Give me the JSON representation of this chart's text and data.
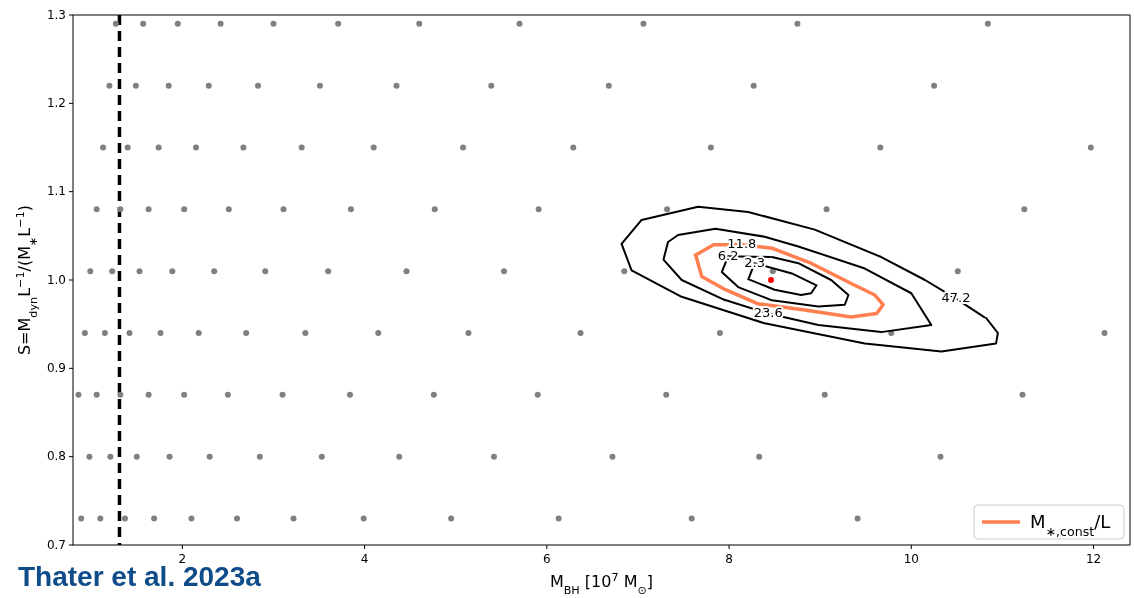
{
  "chart_data": {
    "type": "scatter",
    "xlabel": "M$_{BH}$ [10$^{7}$ M$_{⊙}$]",
    "ylabel": "S=M$_{dyn}$L$^{−1}$/(M$_{∗}$L$^{−1}$)",
    "xlim": [
      0.8,
      12.4
    ],
    "ylim": [
      0.7,
      1.3
    ],
    "xticks": [
      2,
      4,
      6,
      8,
      10,
      12
    ],
    "yticks": [
      {
        "value": 0.7,
        "label": "0.7"
      },
      {
        "value": 0.8,
        "label": "0.8"
      },
      {
        "value": 0.9,
        "label": "0.9"
      },
      {
        "value": 1.0,
        "label": "1.0"
      },
      {
        "value": 1.1,
        "label": "1.1"
      },
      {
        "value": 1.2,
        "label": "1.2"
      },
      {
        "value": 1.3,
        "label": "1.3"
      }
    ],
    "legend": "bottom right",
    "ref_lines": [
      {
        "axis": "x",
        "value": 1.31,
        "color": "#000000",
        "line_style": "dashed"
      }
    ],
    "series": [
      {
        "marker": "circle",
        "color": "#808080",
        "x": [
          1.27,
          1.57,
          1.95,
          2.42,
          3.0,
          3.71,
          4.6,
          5.7,
          7.06,
          8.75,
          10.84,
          1.2,
          1.49,
          1.85,
          2.29,
          2.83,
          3.51,
          4.35,
          5.39,
          6.68,
          8.27,
          10.25,
          1.13,
          1.4,
          1.74,
          2.15,
          2.67,
          3.31,
          4.1,
          5.08,
          6.29,
          7.8,
          9.66,
          11.97,
          1.06,
          1.32,
          1.63,
          2.02,
          2.51,
          3.11,
          3.85,
          4.77,
          5.91,
          7.32,
          9.07,
          11.24,
          0.99,
          1.23,
          1.53,
          1.89,
          2.35,
          2.91,
          3.6,
          4.46,
          5.53,
          6.85,
          8.48,
          10.51,
          0.93,
          1.15,
          1.42,
          1.76,
          2.18,
          2.7,
          3.35,
          4.15,
          5.14,
          6.37,
          7.9,
          9.78,
          12.12,
          0.86,
          1.06,
          1.32,
          1.63,
          2.02,
          2.5,
          3.1,
          3.84,
          4.76,
          5.9,
          7.31,
          9.05,
          11.22,
          0.98,
          1.21,
          1.5,
          1.86,
          2.3,
          2.85,
          3.53,
          4.38,
          5.42,
          6.72,
          8.33,
          10.32,
          0.89,
          1.1,
          1.37,
          1.69,
          2.1,
          2.6,
          3.22,
          3.99,
          4.95,
          6.13,
          7.59,
          9.41,
          null
        ],
        "values": [
          1.29,
          1.29,
          1.29,
          1.29,
          1.29,
          1.29,
          1.29,
          1.29,
          1.29,
          1.29,
          1.29,
          1.22,
          1.22,
          1.22,
          1.22,
          1.22,
          1.22,
          1.22,
          1.22,
          1.22,
          1.22,
          1.22,
          1.15,
          1.15,
          1.15,
          1.15,
          1.15,
          1.15,
          1.15,
          1.15,
          1.15,
          1.15,
          1.15,
          1.15,
          1.08,
          1.08,
          1.08,
          1.08,
          1.08,
          1.08,
          1.08,
          1.08,
          1.08,
          1.08,
          1.08,
          1.08,
          1.01,
          1.01,
          1.01,
          1.01,
          1.01,
          1.01,
          1.01,
          1.01,
          1.01,
          1.01,
          1.01,
          1.01,
          0.94,
          0.94,
          0.94,
          0.94,
          0.94,
          0.94,
          0.94,
          0.94,
          0.94,
          0.94,
          0.94,
          0.94,
          0.94,
          0.87,
          0.87,
          0.87,
          0.87,
          0.87,
          0.87,
          0.87,
          0.87,
          0.87,
          0.87,
          0.87,
          0.87,
          0.87,
          0.8,
          0.8,
          0.8,
          0.8,
          0.8,
          0.8,
          0.8,
          0.8,
          0.8,
          0.8,
          0.8,
          0.8,
          0.73,
          0.73,
          0.73,
          0.73,
          0.73,
          0.73,
          0.73,
          0.73,
          0.73,
          0.73,
          0.73,
          0.73,
          null
        ]
      },
      {
        "type": "line",
        "color": "#000000",
        "x": [
          8.21,
          8.5,
          8.79,
          8.9,
          8.96,
          8.7,
          8.28,
          8.22
        ],
        "values": [
          1.001,
          0.989,
          0.983,
          0.985,
          0.994,
          1.007,
          1.019,
          1.003
        ]
      },
      {
        "type": "line",
        "color": "#000000",
        "x": [
          8.47,
          8.76,
          9.12,
          9.31,
          9.27,
          8.98,
          8.47,
          8.1,
          7.92,
          7.99,
          8.45
        ],
        "values": [
          1.026,
          1.019,
          1.0,
          0.983,
          0.972,
          0.97,
          0.977,
          0.992,
          1.009,
          1.027,
          1.026
        ]
      },
      {
        "type": "line",
        "color": "#000000",
        "x": [
          7.96,
          7.48,
          7.28,
          7.33,
          7.44,
          7.85,
          8.39,
          8.76,
          9.49,
          10.0,
          10.22,
          9.67,
          8.98,
          8.43,
          7.94
        ],
        "values": [
          0.977,
          1.0,
          1.023,
          1.043,
          1.051,
          1.058,
          1.049,
          1.038,
          1.013,
          0.985,
          0.949,
          0.941,
          0.949,
          0.962,
          0.978
        ]
      },
      {
        "type": "line",
        "color": "#000000",
        "x": [
          10.82,
          10.95,
          10.93,
          10.33,
          9.49,
          8.39,
          7.48,
          6.93,
          6.82,
          7.04,
          7.66,
          8.21,
          8.94,
          9.67,
          10.15,
          10.49,
          10.8
        ],
        "values": [
          0.957,
          0.94,
          0.928,
          0.919,
          0.928,
          0.951,
          0.981,
          1.011,
          1.041,
          1.068,
          1.083,
          1.077,
          1.057,
          1.026,
          1.0,
          0.979,
          0.958
        ]
      },
      {
        "type": "line",
        "name": "M$_{∗,const}$/L",
        "color": "#ff7f50",
        "x": [
          7.63,
          7.83,
          8.14,
          8.47,
          8.9,
          9.34,
          9.6,
          9.69,
          9.62,
          9.34,
          8.83,
          8.32,
          7.96,
          7.7,
          7.64
        ],
        "values": [
          1.028,
          1.04,
          1.04,
          1.036,
          1.019,
          0.996,
          0.983,
          0.972,
          0.962,
          0.958,
          0.966,
          0.973,
          0.989,
          1.004,
          1.026
        ]
      },
      {
        "marker": "circle",
        "color": "#ff0000",
        "x": [
          8.46
        ],
        "values": [
          1.0
        ]
      }
    ],
    "annotations": [
      {
        "text": "2.3",
        "x": 8.28,
        "y": 1.019
      },
      {
        "text": "6.2",
        "x": 7.99,
        "y": 1.027
      },
      {
        "text": "11.8",
        "x": 8.14,
        "y": 1.04
      },
      {
        "text": "23.6",
        "x": 8.43,
        "y": 0.962
      },
      {
        "text": "47.2",
        "x": 10.49,
        "y": 0.979
      },
      "Thater et al. 2023a"
    ]
  }
}
